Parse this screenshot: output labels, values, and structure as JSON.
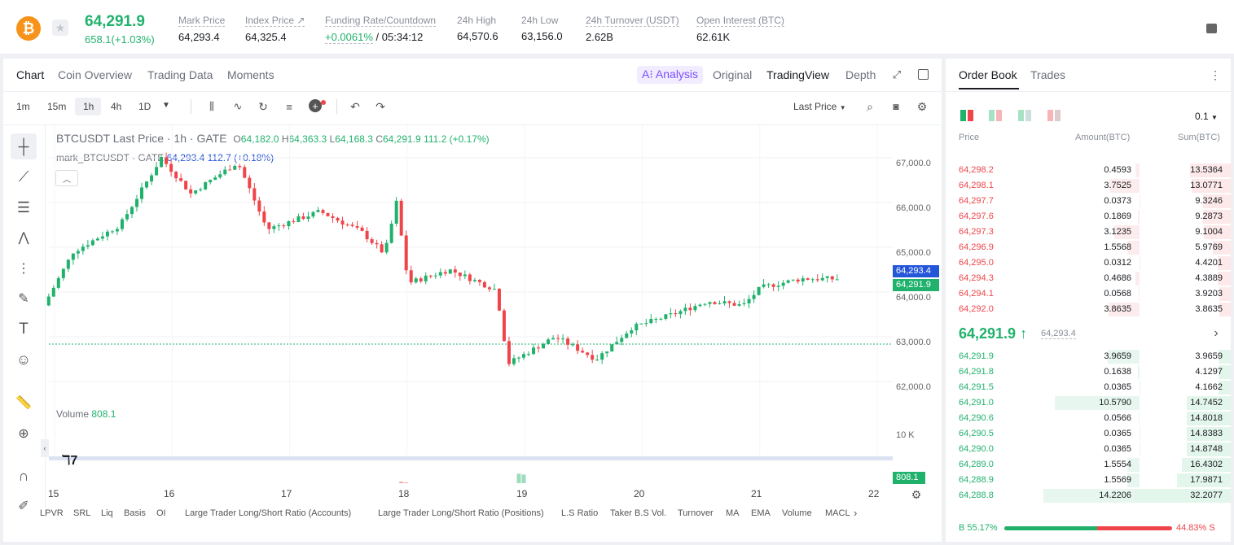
{
  "header": {
    "last_price": "64,291.9",
    "change": "658.1(+1.03%)",
    "stats": [
      {
        "label": "Mark Price",
        "value": "64,293.4"
      },
      {
        "label": "Index Price ↗",
        "value": "64,325.4"
      },
      {
        "label": "Funding Rate/Countdown",
        "value_a": "+0.0061%",
        "value_b": "/ 05:34:12"
      },
      {
        "label": "24h High",
        "value": "64,570.6"
      },
      {
        "label": "24h Low",
        "value": "63,156.0"
      },
      {
        "label": "24h Turnover (USDT)",
        "value": "2.62B"
      },
      {
        "label": "Open Interest (BTC)",
        "value": "62.61K"
      }
    ]
  },
  "chart_tabs": [
    "Chart",
    "Coin Overview",
    "Trading Data",
    "Moments"
  ],
  "view_tabs": {
    "analysis": "A⁝ Analysis",
    "original": "Original",
    "tradingview": "TradingView",
    "depth": "Depth"
  },
  "timeframes": [
    "1m",
    "15m",
    "1h",
    "4h",
    "1D"
  ],
  "price_type": "Last Price",
  "legend": {
    "symbol": "BTCUSDT Last Price · 1h · GATE",
    "o_label": "O",
    "o": "64,182.0",
    "h_label": "H",
    "h": "64,363.3",
    "l_label": "L",
    "l": "64,168.3",
    "c_label": "C",
    "c": "64,291.9",
    "chg": "111.2 (+0.17%)",
    "mark_label": "mark_BTCUSDT · GATE",
    "mark_val": "64,293.4",
    "mark_chg": "112.7 (+0.18%)",
    "volume_label": "Volume",
    "volume_val": "808.1"
  },
  "y_axis": [
    "67,000.0",
    "66,000.0",
    "65,000.0",
    "64,000.0",
    "63,000.0",
    "62,000.0"
  ],
  "vol_axis": "10 K",
  "price_tags": {
    "mark": "64,293.4",
    "last": "64,291.9",
    "vol": "808.1"
  },
  "x_axis": [
    "15",
    "16",
    "17",
    "18",
    "19",
    "20",
    "21",
    "22"
  ],
  "indicators": [
    "LPVR",
    "SRL",
    "Liq",
    "Basis",
    "OI",
    "Large Trader Long/Short Ratio (Accounts)",
    "Large Trader Long/Short Ratio (Positions)",
    "L.S Ratio",
    "Taker B.S Vol.",
    "Turnover",
    "MA",
    "EMA",
    "Volume",
    "MACL"
  ],
  "orderbook": {
    "tabs": [
      "Order Book",
      "Trades"
    ],
    "precision": "0.1",
    "cols": [
      "Price",
      "Amount(BTC)",
      "Sum(BTC)"
    ],
    "asks": [
      [
        "64,298.2",
        "0.4593",
        "13.5364"
      ],
      [
        "64,298.1",
        "3.7525",
        "13.0771"
      ],
      [
        "64,297.7",
        "0.0373",
        "9.3246"
      ],
      [
        "64,297.6",
        "0.1869",
        "9.2873"
      ],
      [
        "64,297.3",
        "3.1235",
        "9.1004"
      ],
      [
        "64,296.9",
        "1.5568",
        "5.9769"
      ],
      [
        "64,295.0",
        "0.0312",
        "4.4201"
      ],
      [
        "64,294.3",
        "0.4686",
        "4.3889"
      ],
      [
        "64,294.1",
        "0.0568",
        "3.9203"
      ],
      [
        "64,292.0",
        "3.8635",
        "3.8635"
      ]
    ],
    "mid_price": "64,291.9 ↑",
    "mid_mark": "64,293.4",
    "bids": [
      [
        "64,291.9",
        "3.9659",
        "3.9659"
      ],
      [
        "64,291.8",
        "0.1638",
        "4.1297"
      ],
      [
        "64,291.5",
        "0.0365",
        "4.1662"
      ],
      [
        "64,291.0",
        "10.5790",
        "14.7452"
      ],
      [
        "64,290.6",
        "0.0566",
        "14.8018"
      ],
      [
        "64,290.5",
        "0.0365",
        "14.8383"
      ],
      [
        "64,290.0",
        "0.0365",
        "14.8748"
      ],
      [
        "64,289.0",
        "1.5554",
        "16.4302"
      ],
      [
        "64,288.9",
        "1.5569",
        "17.9871"
      ],
      [
        "64,288.8",
        "14.2206",
        "32.2077"
      ]
    ],
    "buy_ratio": "B 55.17%",
    "sell_ratio": "44.83% S",
    "buy_fraction": 0.5517
  },
  "chart_data": {
    "type": "candlestick",
    "symbol": "BTCUSDT",
    "interval": "1h",
    "x": [
      "15",
      "16",
      "17",
      "18",
      "19",
      "20",
      "21",
      "22"
    ],
    "ylim": [
      61700,
      67500
    ],
    "key_points": [
      [
        14.95,
        63700
      ],
      [
        15.2,
        64900
      ],
      [
        15.6,
        65500
      ],
      [
        15.95,
        67000
      ],
      [
        16.2,
        66200
      ],
      [
        16.6,
        66900
      ],
      [
        16.85,
        65400
      ],
      [
        17.3,
        65800
      ],
      [
        17.65,
        65350
      ],
      [
        17.85,
        64850
      ],
      [
        17.95,
        66000
      ],
      [
        18.05,
        64200
      ],
      [
        18.4,
        64500
      ],
      [
        18.8,
        64050
      ],
      [
        18.9,
        62400
      ],
      [
        19.3,
        63000
      ],
      [
        19.65,
        62500
      ],
      [
        19.95,
        63200
      ],
      [
        20.3,
        63500
      ],
      [
        20.6,
        63800
      ],
      [
        20.9,
        63700
      ],
      [
        21.05,
        64100
      ],
      [
        21.4,
        64300
      ],
      [
        21.7,
        64292
      ]
    ],
    "volume_peaks": [
      {
        "x": "18",
        "value": 15000
      },
      {
        "x": "19",
        "value": 17000
      }
    ]
  },
  "colors": {
    "up": "#20b26c",
    "down": "#ef454a",
    "accent": "#7b4dff",
    "blue": "#2456d8"
  }
}
